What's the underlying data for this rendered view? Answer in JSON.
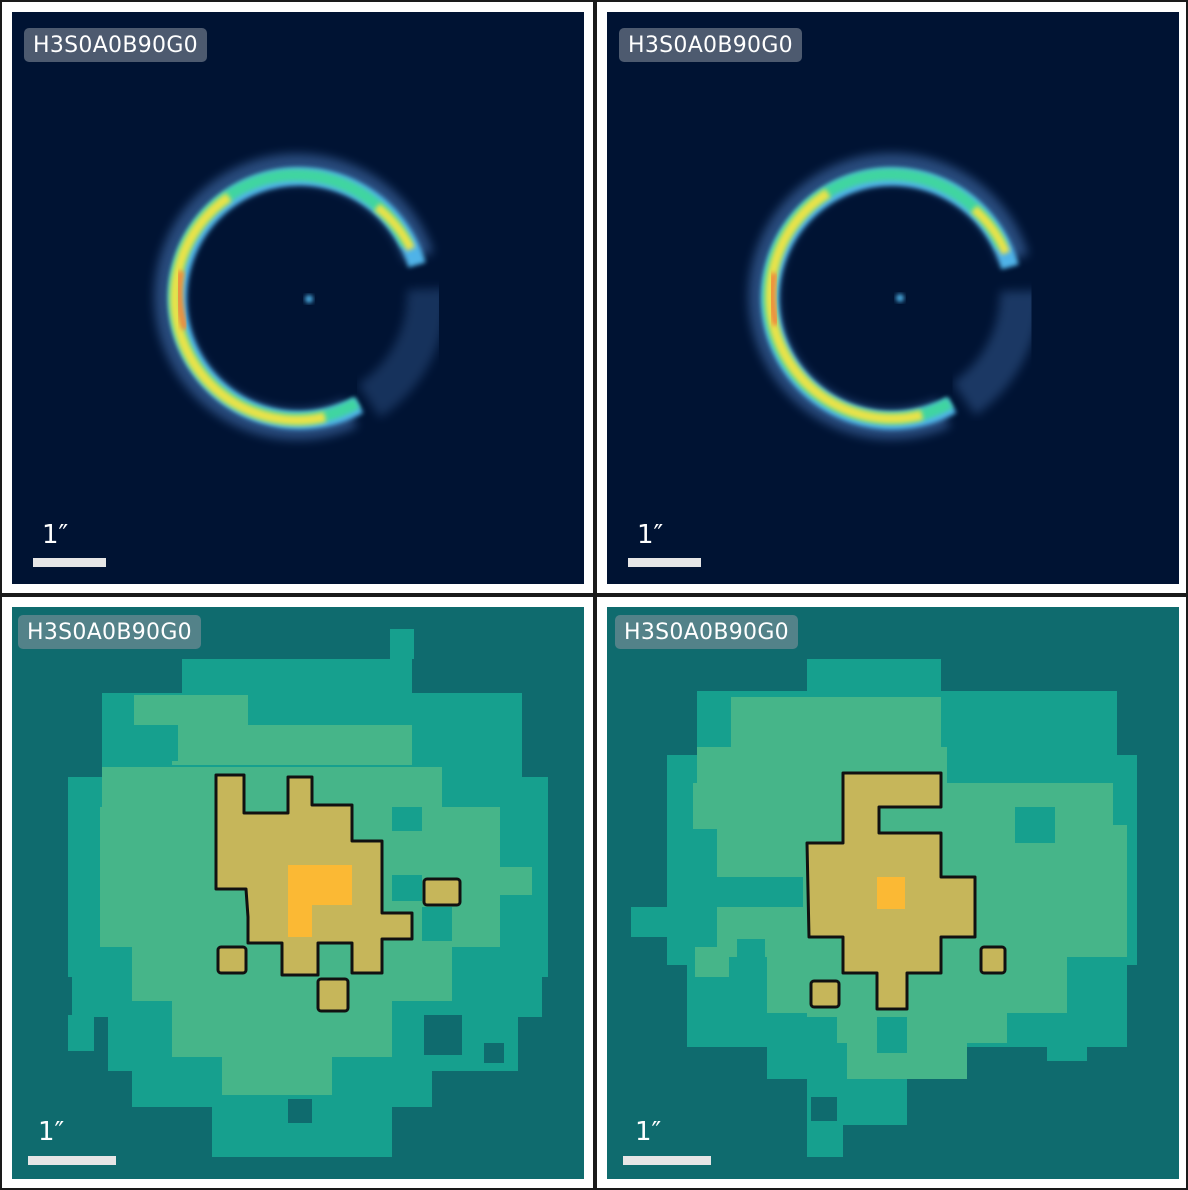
{
  "panels": [
    {
      "id": "top-left",
      "kind": "ring",
      "label": "H3S0A0B90G0",
      "scale_label": "1″",
      "background": "#001333"
    },
    {
      "id": "top-right",
      "kind": "ring",
      "label": "H3S0A0B90G0",
      "scale_label": "1″",
      "background": "#001333"
    },
    {
      "id": "bottom-left",
      "kind": "pixmap",
      "label": "H3S0A0B90G0",
      "scale_label": "1″",
      "background": "#0f6b6e"
    },
    {
      "id": "bottom-right",
      "kind": "pixmap",
      "label": "H3S0A0B90G0",
      "scale_label": "1″",
      "background": "#0f6b6e"
    }
  ],
  "colors": {
    "ring_glow": "#5a8fd6",
    "ring_outer": "#4fb3e8",
    "ring_mid": "#3fd5a0",
    "ring_inner": "#e8e24a",
    "ring_peak": "#f08a3c",
    "pix_level0": "#0f6b6e",
    "pix_level1": "#16a08e",
    "pix_level2": "#46b589",
    "pix_level3": "#c6b65a",
    "pix_level4": "#fbb934",
    "contour": "#111111"
  }
}
